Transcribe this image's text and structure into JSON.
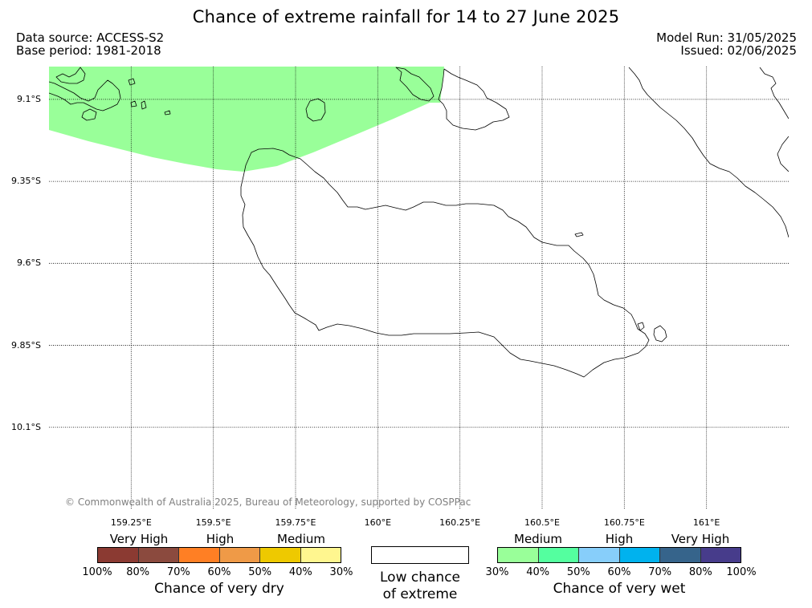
{
  "title": "Chance of extreme rainfall for 14 to 27 June 2025",
  "data_source": "Data source: ACCESS-S2",
  "base_period": "Base period: 1981-2018",
  "model_run": "Model Run: 31/05/2025",
  "issued": "Issued: 02/06/2025",
  "map": {
    "lat_range": [
      -10.35,
      -9.0
    ],
    "lon_range": [
      159.0,
      161.25
    ],
    "lat_ticks": [
      "9.1°S",
      "9.35°S",
      "9.6°S",
      "9.85°S",
      "10.1°S"
    ],
    "lon_ticks": [
      "159.25°E",
      "159.5°E",
      "159.75°E",
      "160°E",
      "160.25°E",
      "160.5°E",
      "160.75°E",
      "161°E"
    ],
    "grid": true,
    "shaded_region": {
      "category": "Very wet: 30%-40%",
      "color": "#99ff99"
    },
    "copyright": "© Commonwealth of Australia 2025, Bureau of Meteorology, supported by COSPPac"
  },
  "legend": {
    "dry": {
      "groups": [
        "Very High",
        "High",
        "Medium"
      ],
      "colors": [
        "#8b3a32",
        "#8b4a3e",
        "#ff7f24",
        "#ef9a47",
        "#eec900",
        "#fff68f"
      ],
      "ticks": [
        "100%",
        "80%",
        "70%",
        "60%",
        "50%",
        "40%",
        "30%"
      ],
      "caption": "Chance of very dry"
    },
    "low": {
      "caption_line1": "Low chance",
      "caption_line2": "of extreme",
      "color": "#ffffff"
    },
    "wet": {
      "groups": [
        "Medium",
        "High",
        "Very High"
      ],
      "colors": [
        "#99ff99",
        "#54ff9f",
        "#87cefa",
        "#00b2ee",
        "#36648b",
        "#473c8b"
      ],
      "ticks": [
        "30%",
        "40%",
        "50%",
        "60%",
        "70%",
        "80%",
        "100%"
      ],
      "caption": "Chance of very wet"
    }
  }
}
